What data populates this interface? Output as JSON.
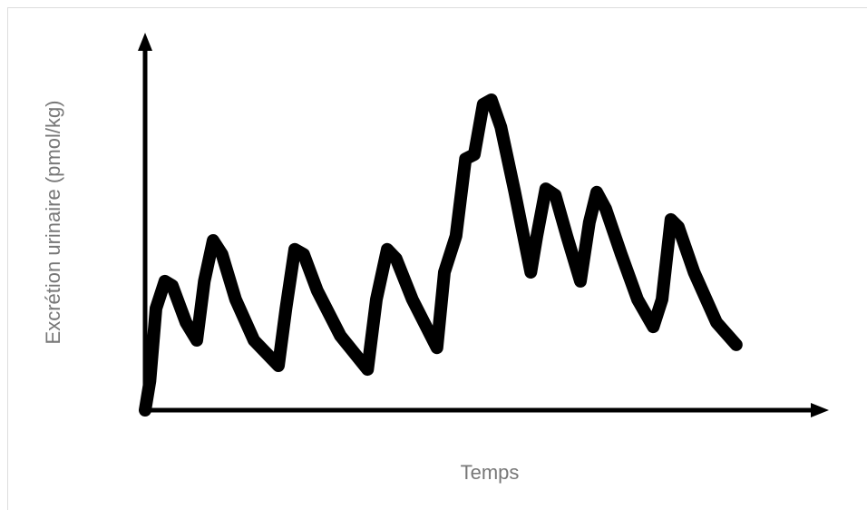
{
  "chart_data": {
    "type": "line",
    "x_label": "Temps",
    "y_label": "Excrétion urinaire (pmol/kg)",
    "xlim": [
      0,
      100
    ],
    "ylim": [
      0,
      100
    ],
    "series": [
      {
        "color": "#000000",
        "x": [
          0,
          0.7,
          1.6,
          2.9,
          4,
          6,
          7.6,
          8.7,
          10,
          11.3,
          13.3,
          16,
          19.6,
          20.7,
          22,
          23.3,
          25.3,
          28.7,
          32.7,
          34,
          35.6,
          36.9,
          39.3,
          42.9,
          44,
          45.7,
          47.1,
          48.4,
          49.7,
          50.9,
          52.3,
          54.3,
          56.7,
          57.6,
          58.9,
          60.3,
          62,
          64,
          65.3,
          66.4,
          67.7,
          70,
          72.4,
          74.7,
          76,
          77.3,
          78.4,
          80.7,
          84,
          86.9
        ],
        "values": [
          0,
          7.8,
          27.2,
          34.5,
          33.3,
          23.5,
          18.7,
          34.5,
          45.4,
          41.7,
          29.6,
          18.7,
          11.9,
          27.2,
          43,
          41.7,
          32,
          19.9,
          10.9,
          29.6,
          43,
          40.5,
          29.6,
          16.7,
          36.9,
          46.6,
          67.2,
          68.4,
          81.8,
          83,
          75.7,
          58.7,
          36.9,
          46.6,
          59.2,
          57.5,
          46.6,
          34.5,
          50.2,
          58.3,
          53.9,
          41.7,
          29.6,
          22.3,
          29.6,
          51,
          49,
          36.9,
          23.5,
          17.5
        ]
      }
    ]
  }
}
